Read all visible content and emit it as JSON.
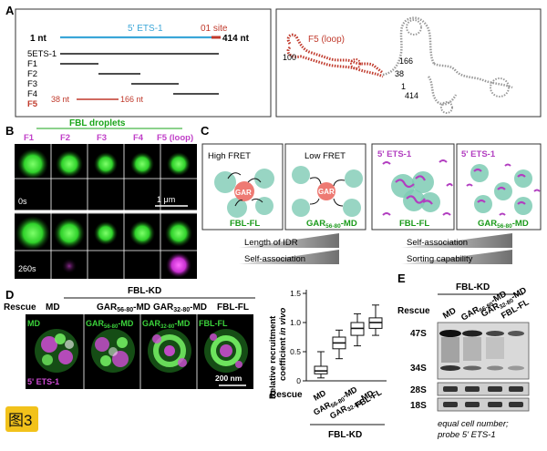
{
  "figure_tag": "图3",
  "panelA": {
    "label": "A",
    "start_label": "1 nt",
    "ets_label": "5' ETS-1",
    "site_label": "01 site",
    "end_label": "414 nt",
    "fragments": [
      "5ETS-1",
      "F1",
      "F2",
      "F3",
      "F4",
      "F5"
    ],
    "f5_start": "38 nt",
    "f5_end": "166 nt",
    "loop_label": "F5 (loop)",
    "struct_labels": [
      "100",
      "166",
      "38",
      "1",
      "414"
    ],
    "colors": {
      "ets": "#3aa6d8",
      "red": "#c0392b",
      "black": "#111111"
    }
  },
  "panelB": {
    "label": "B",
    "title": "FBL droplets",
    "columns": [
      "F1",
      "F2",
      "F3",
      "F4",
      "F5 (loop)"
    ],
    "time_labels": [
      "0s",
      "260s"
    ],
    "scale_label": "1 μm",
    "title_color": "#1aa51a",
    "magenta": "#c03fc8"
  },
  "panelC": {
    "label": "C",
    "boxes": [
      {
        "title": "High FRET",
        "bottom": "FBL-FL",
        "center": "GAR"
      },
      {
        "title": "Low FRET",
        "bottom_main": "GAR",
        "bottom_sub": "56-80",
        "bottom_tail": "-MD",
        "center": "GAR"
      },
      {
        "title": "5' ETS-1",
        "bottom": "FBL-FL"
      },
      {
        "title": "5' ETS-1",
        "bottom_main": "GAR",
        "bottom_sub": "56-80",
        "bottom_tail": "-MD"
      }
    ],
    "wedges_left": [
      "Length of IDR",
      "Self-association"
    ],
    "wedges_right": [
      "Self-association",
      "Sorting capability"
    ]
  },
  "panelD": {
    "label": "D",
    "header": "FBL-KD",
    "rescue_label": "Rescue",
    "columns": [
      {
        "main": "MD",
        "sub": "",
        "tail": ""
      },
      {
        "main": "GAR",
        "sub": "56-80",
        "tail": "-MD"
      },
      {
        "main": "GAR",
        "sub": "32-80",
        "tail": "-MD"
      },
      {
        "main": "FBL-FL",
        "sub": "",
        "tail": ""
      }
    ],
    "green_label": "MD",
    "magenta_label": "5' ETS-1",
    "scale_label": "200 nm"
  },
  "boxplot": {
    "ylabel_line1": "Relative recruitment",
    "ylabel_line2": "coefficient",
    "ylabel_italic": "in vivo",
    "rescue_label": "Rescue",
    "footer": "FBL-KD",
    "categories": [
      {
        "main": "MD",
        "sub": "",
        "tail": ""
      },
      {
        "main": "GAR",
        "sub": "56-80",
        "tail": "-MD"
      },
      {
        "main": "GAR",
        "sub": "32-80",
        "tail": "-MD"
      },
      {
        "main": "FBL-FL",
        "sub": "",
        "tail": ""
      }
    ],
    "yticks": [
      "0",
      "0.5",
      "1.0",
      "1.5"
    ],
    "ymin": 0,
    "ymax": 1.5,
    "stats": [
      {
        "min": 0.05,
        "q1": 0.12,
        "median": 0.17,
        "q3": 0.25,
        "max": 0.5
      },
      {
        "min": 0.38,
        "q1": 0.55,
        "median": 0.65,
        "q3": 0.75,
        "max": 0.87
      },
      {
        "min": 0.6,
        "q1": 0.78,
        "median": 0.9,
        "q3": 1.0,
        "max": 1.15
      },
      {
        "min": 0.78,
        "q1": 0.9,
        "median": 1.0,
        "q3": 1.08,
        "max": 1.3
      }
    ]
  },
  "panelE": {
    "label": "E",
    "header": "FBL-KD",
    "rescue_label": "Rescue",
    "lanes": [
      {
        "main": "MD",
        "sub": "",
        "tail": ""
      },
      {
        "main": "GAR",
        "sub": "56-80",
        "tail": "-MD"
      },
      {
        "main": "GAR",
        "sub": "32-80",
        "tail": "-MD"
      },
      {
        "main": "FBL-FL",
        "sub": "",
        "tail": ""
      }
    ],
    "bands": [
      "47S",
      "34S",
      "28S",
      "18S"
    ],
    "caption_line1": "equal cell number;",
    "caption_line2": "probe 5' ETS-1"
  }
}
